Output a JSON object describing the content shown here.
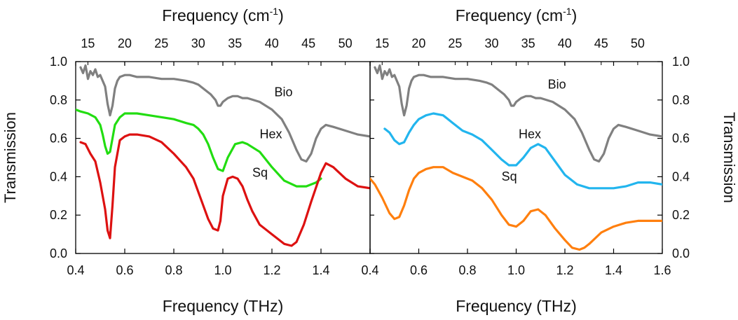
{
  "chart_data": [
    {
      "type": "line",
      "panel": "left",
      "xlabel": "Frequency (THz)",
      "ylabel": "Transmission",
      "top_xlabel": "Frequency (cm",
      "top_xlabel_sup": "-1",
      "top_xlabel_end": ")",
      "xlim": [
        0.4,
        1.6
      ],
      "ylim": [
        0.0,
        1.0
      ],
      "x_ticks": [
        0.4,
        0.6,
        0.8,
        1.0,
        1.2,
        1.4,
        1.6
      ],
      "x_tick_labels": [
        "0.4",
        "0.6",
        "0.8",
        "1.0",
        "1.2",
        "1.4",
        "1.6"
      ],
      "y_ticks": [
        0.0,
        0.2,
        0.4,
        0.6,
        0.8,
        1.0
      ],
      "y_tick_labels": [
        "0.0",
        "0.2",
        "0.4",
        "0.6",
        "0.8",
        "1.0"
      ],
      "top_ticks_cm": [
        15,
        20,
        25,
        30,
        35,
        40,
        45,
        50
      ],
      "top_tick_labels": [
        "15",
        "20",
        "25",
        "30",
        "35",
        "40",
        "45",
        "50"
      ],
      "series": [
        {
          "name": "Bio",
          "label": "Bio",
          "color": "#808080",
          "label_at": [
            1.21,
            0.82
          ],
          "x": [
            0.42,
            0.43,
            0.44,
            0.45,
            0.46,
            0.47,
            0.48,
            0.49,
            0.5,
            0.52,
            0.53,
            0.54,
            0.55,
            0.56,
            0.57,
            0.58,
            0.6,
            0.62,
            0.65,
            0.7,
            0.75,
            0.8,
            0.85,
            0.88,
            0.9,
            0.92,
            0.95,
            0.97,
            0.98,
            0.99,
            1.0,
            1.02,
            1.04,
            1.06,
            1.08,
            1.1,
            1.15,
            1.2,
            1.24,
            1.27,
            1.3,
            1.32,
            1.34,
            1.36,
            1.38,
            1.4,
            1.42,
            1.45,
            1.5,
            1.55,
            1.6
          ],
          "values": [
            0.97,
            0.94,
            0.98,
            0.91,
            0.95,
            0.93,
            0.96,
            0.92,
            0.93,
            0.87,
            0.78,
            0.72,
            0.77,
            0.86,
            0.9,
            0.92,
            0.93,
            0.93,
            0.92,
            0.92,
            0.91,
            0.91,
            0.9,
            0.89,
            0.88,
            0.86,
            0.83,
            0.8,
            0.77,
            0.77,
            0.79,
            0.81,
            0.82,
            0.82,
            0.81,
            0.81,
            0.79,
            0.75,
            0.7,
            0.63,
            0.54,
            0.49,
            0.48,
            0.52,
            0.6,
            0.65,
            0.67,
            0.66,
            0.64,
            0.62,
            0.61
          ]
        },
        {
          "name": "Hex",
          "label": "Hex",
          "color": "#22dd11",
          "label_at": [
            1.15,
            0.6
          ],
          "x": [
            0.4,
            0.42,
            0.45,
            0.48,
            0.5,
            0.51,
            0.52,
            0.53,
            0.54,
            0.55,
            0.56,
            0.58,
            0.6,
            0.65,
            0.7,
            0.8,
            0.85,
            0.88,
            0.9,
            0.92,
            0.94,
            0.96,
            0.98,
            1.0,
            1.02,
            1.05,
            1.08,
            1.1,
            1.15,
            1.2,
            1.25,
            1.3,
            1.34,
            1.38,
            1.4
          ],
          "values": [
            0.75,
            0.74,
            0.73,
            0.71,
            0.67,
            0.62,
            0.56,
            0.52,
            0.53,
            0.6,
            0.67,
            0.71,
            0.73,
            0.73,
            0.72,
            0.7,
            0.68,
            0.67,
            0.65,
            0.62,
            0.57,
            0.5,
            0.44,
            0.43,
            0.5,
            0.57,
            0.58,
            0.57,
            0.53,
            0.45,
            0.38,
            0.35,
            0.35,
            0.37,
            0.39
          ]
        },
        {
          "name": "Sq",
          "label": "Sq",
          "color": "#dd1111",
          "label_at": [
            1.12,
            0.4
          ],
          "x": [
            0.42,
            0.44,
            0.46,
            0.48,
            0.5,
            0.52,
            0.53,
            0.54,
            0.55,
            0.56,
            0.58,
            0.6,
            0.62,
            0.65,
            0.7,
            0.75,
            0.8,
            0.85,
            0.88,
            0.9,
            0.92,
            0.94,
            0.96,
            0.98,
            0.99,
            1.0,
            1.02,
            1.04,
            1.06,
            1.08,
            1.1,
            1.12,
            1.15,
            1.2,
            1.25,
            1.28,
            1.3,
            1.33,
            1.36,
            1.4,
            1.42,
            1.45,
            1.5,
            1.55,
            1.6
          ],
          "values": [
            0.58,
            0.57,
            0.52,
            0.48,
            0.37,
            0.23,
            0.12,
            0.08,
            0.25,
            0.45,
            0.59,
            0.61,
            0.62,
            0.62,
            0.61,
            0.58,
            0.52,
            0.45,
            0.39,
            0.32,
            0.25,
            0.18,
            0.13,
            0.12,
            0.17,
            0.3,
            0.39,
            0.4,
            0.39,
            0.35,
            0.28,
            0.22,
            0.15,
            0.1,
            0.05,
            0.04,
            0.06,
            0.15,
            0.27,
            0.42,
            0.47,
            0.45,
            0.39,
            0.35,
            0.34
          ]
        }
      ]
    },
    {
      "type": "line",
      "panel": "right",
      "xlabel": "Frequency (THz)",
      "ylabel": "Transmission",
      "top_xlabel": "Frequency (cm",
      "top_xlabel_sup": "-1",
      "top_xlabel_end": ")",
      "xlim": [
        0.4,
        1.6
      ],
      "ylim": [
        0.0,
        1.0
      ],
      "x_ticks": [
        0.4,
        0.6,
        0.8,
        1.0,
        1.2,
        1.4,
        1.6
      ],
      "x_tick_labels": [
        "0.4",
        "0.6",
        "0.8",
        "1.0",
        "1.2",
        "1.4",
        "1.6"
      ],
      "y_ticks": [
        0.0,
        0.2,
        0.4,
        0.6,
        0.8,
        1.0
      ],
      "y_tick_labels": [
        "0.0",
        "0.2",
        "0.4",
        "0.6",
        "0.8",
        "1.0"
      ],
      "top_ticks_cm": [
        15,
        20,
        25,
        30,
        35,
        40,
        45,
        50
      ],
      "top_tick_labels": [
        "15",
        "20",
        "25",
        "30",
        "35",
        "40",
        "45",
        "50"
      ],
      "series": [
        {
          "name": "Bio",
          "label": "Bio",
          "color": "#808080",
          "label_at": [
            1.13,
            0.86
          ],
          "x": [
            0.42,
            0.43,
            0.44,
            0.45,
            0.46,
            0.47,
            0.48,
            0.49,
            0.5,
            0.52,
            0.53,
            0.54,
            0.55,
            0.56,
            0.57,
            0.58,
            0.6,
            0.62,
            0.65,
            0.7,
            0.75,
            0.8,
            0.85,
            0.88,
            0.9,
            0.92,
            0.95,
            0.97,
            0.98,
            0.99,
            1.0,
            1.02,
            1.04,
            1.06,
            1.08,
            1.1,
            1.15,
            1.2,
            1.24,
            1.27,
            1.3,
            1.32,
            1.34,
            1.36,
            1.38,
            1.4,
            1.42,
            1.45,
            1.5,
            1.55,
            1.6
          ],
          "values": [
            0.97,
            0.94,
            0.98,
            0.91,
            0.95,
            0.93,
            0.96,
            0.92,
            0.93,
            0.87,
            0.78,
            0.72,
            0.77,
            0.86,
            0.9,
            0.92,
            0.93,
            0.93,
            0.92,
            0.92,
            0.91,
            0.91,
            0.9,
            0.89,
            0.88,
            0.86,
            0.83,
            0.8,
            0.77,
            0.77,
            0.79,
            0.81,
            0.82,
            0.82,
            0.81,
            0.81,
            0.79,
            0.75,
            0.7,
            0.63,
            0.54,
            0.49,
            0.48,
            0.52,
            0.6,
            0.65,
            0.67,
            0.66,
            0.64,
            0.62,
            0.61
          ]
        },
        {
          "name": "Hex",
          "label": "Hex",
          "color": "#22b5ee",
          "label_at": [
            1.01,
            0.6
          ],
          "x": [
            0.46,
            0.48,
            0.5,
            0.52,
            0.54,
            0.56,
            0.58,
            0.6,
            0.63,
            0.66,
            0.7,
            0.74,
            0.78,
            0.82,
            0.86,
            0.9,
            0.94,
            0.97,
            1.0,
            1.03,
            1.06,
            1.09,
            1.12,
            1.16,
            1.2,
            1.25,
            1.3,
            1.35,
            1.4,
            1.45,
            1.5,
            1.55,
            1.6
          ],
          "values": [
            0.65,
            0.63,
            0.59,
            0.57,
            0.58,
            0.63,
            0.67,
            0.7,
            0.72,
            0.73,
            0.72,
            0.68,
            0.64,
            0.62,
            0.59,
            0.54,
            0.49,
            0.46,
            0.46,
            0.5,
            0.55,
            0.57,
            0.55,
            0.48,
            0.41,
            0.36,
            0.34,
            0.34,
            0.34,
            0.35,
            0.37,
            0.37,
            0.36
          ]
        },
        {
          "name": "Sq",
          "label": "Sq",
          "color": "#ff7f0e",
          "label_at": [
            0.94,
            0.38
          ],
          "x": [
            0.4,
            0.42,
            0.45,
            0.48,
            0.5,
            0.52,
            0.54,
            0.56,
            0.58,
            0.6,
            0.63,
            0.66,
            0.7,
            0.74,
            0.78,
            0.82,
            0.86,
            0.9,
            0.94,
            0.97,
            1.0,
            1.03,
            1.06,
            1.09,
            1.12,
            1.16,
            1.2,
            1.23,
            1.26,
            1.28,
            1.3,
            1.35,
            1.4,
            1.45,
            1.5,
            1.55,
            1.6
          ],
          "values": [
            0.39,
            0.36,
            0.29,
            0.21,
            0.18,
            0.19,
            0.25,
            0.33,
            0.39,
            0.42,
            0.44,
            0.45,
            0.45,
            0.42,
            0.4,
            0.38,
            0.34,
            0.28,
            0.2,
            0.15,
            0.14,
            0.17,
            0.22,
            0.23,
            0.2,
            0.13,
            0.07,
            0.03,
            0.02,
            0.03,
            0.05,
            0.11,
            0.14,
            0.16,
            0.17,
            0.17,
            0.17
          ]
        }
      ]
    }
  ]
}
